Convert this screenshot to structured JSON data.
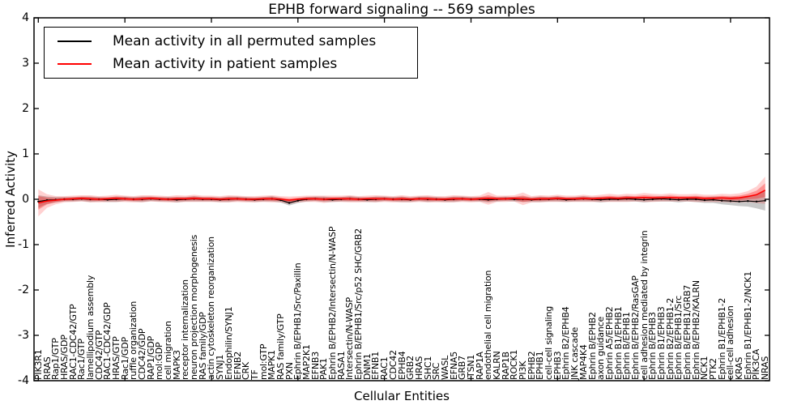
{
  "chart_data": {
    "type": "line",
    "title": "EPHB forward signaling -- 569 samples",
    "xlabel": "Cellular Entities",
    "ylabel": "Inferred Activity",
    "ylim": [
      -4,
      4
    ],
    "yticks": [
      4,
      3,
      2,
      1,
      0,
      -1,
      -2,
      -3,
      -4
    ],
    "grid": false,
    "legend_position": "upper left",
    "categories": [
      "PIK3R1",
      "RRAS",
      "Rap1/GTP",
      "HRAS/GDP",
      "RAC1-CDC42/GTP",
      "Rac1/GTP",
      "lamellipodium assembly",
      "CDC42/GTP",
      "RAC1-CDC42/GDP",
      "HRAS/GTP",
      "Rac1/GDP",
      "ruffle organization",
      "CDC42/GDP",
      "RAP1/GDP",
      "mol:GDP",
      "cell migration",
      "MAPK3",
      "receptor internalization",
      "neuron projection morphogenesis",
      "RAS family/GDP",
      "actin cytoskeleton reorganization",
      "SYNJ1",
      "Endophilin/SYNJ1",
      "EFNB2",
      "CRK",
      "TF",
      "mol:GTP",
      "MAPK1",
      "RAS family/GTP",
      "PXN",
      "Ephrin B/EPHB1/Src/Paxillin",
      "MAP2K1",
      "EFNB3",
      "PAK1",
      "Ephrin B/EPHB2/Intersectin/N-WASP",
      "RASA1",
      "Intersectin/N-WASP",
      "Ephrin B/EPHB1/Src/p52 SHC/GRB2",
      "DNM1",
      "EFNB1",
      "RAC1",
      "CDC42",
      "EPHB4",
      "GRB2",
      "HRAS",
      "SHC1",
      "SRC",
      "WASL",
      "EFNA5",
      "GRB7",
      "ITSN1",
      "RAP1A",
      "endothelial cell migration",
      "KALRN",
      "RAP1B",
      "ROCK1",
      "PI3K",
      "EPHB2",
      "EPHB1",
      "cell-cell signaling",
      "EPHB3",
      "Ephrin B2/EPHB4",
      "JNK cascade",
      "MAP4K4",
      "Ephrin B/EPHB2",
      "axon guidance",
      "Ephrin A5/EPHB2",
      "Ephrin B1/EPHB1",
      "Ephrin B/EPHB1",
      "Ephrin B/EPHB2/RasGAP",
      "cell adhesion mediated by integrin",
      "Ephrin B/EPHB3",
      "Ephrin B1/EPHB3",
      "Ephrin B2/EPHB1-2",
      "Ephrin B/EPHB1/Src",
      "Ephrin B/EPHB1/GRB7",
      "Ephrin B/EPHB2/KALRN",
      "NCK1",
      "PTK2",
      "Ephrin B1/EPHB1-2",
      "cell-cell adhesion",
      "KRAS",
      "Ephrin B1/EPHB1-2/NCK1",
      "PIK3CA",
      "NRAS"
    ],
    "series": [
      {
        "name": "Mean activity in all permuted samples",
        "color": "#000000",
        "values": [
          -0.05,
          -0.02,
          -0.01,
          0.0,
          0.0,
          0.01,
          0.0,
          0.0,
          -0.01,
          0.0,
          0.01,
          0.0,
          0.0,
          0.01,
          0.0,
          0.0,
          -0.01,
          0.0,
          0.01,
          0.0,
          0.0,
          -0.01,
          0.0,
          0.01,
          0.0,
          -0.01,
          0.0,
          0.01,
          -0.02,
          -0.08,
          -0.03,
          0.0,
          0.01,
          0.0,
          -0.01,
          0.0,
          0.01,
          0.0,
          -0.01,
          0.0,
          0.01,
          0.0,
          0.0,
          -0.01,
          0.01,
          0.0,
          0.0,
          -0.01,
          0.0,
          0.01,
          0.0,
          0.0,
          -0.01,
          0.0,
          0.01,
          0.0,
          0.0,
          -0.01,
          0.0,
          0.0,
          0.01,
          -0.01,
          0.0,
          0.01,
          0.0,
          -0.01,
          0.0,
          0.0,
          0.01,
          0.0,
          -0.01,
          0.0,
          0.01,
          0.0,
          -0.01,
          0.0,
          0.0,
          -0.02,
          -0.01,
          -0.03,
          -0.04,
          -0.05,
          -0.04,
          -0.05,
          -0.03
        ],
        "band_halfwidth": [
          0.14,
          0.08,
          0.06,
          0.05,
          0.05,
          0.05,
          0.06,
          0.05,
          0.05,
          0.06,
          0.05,
          0.05,
          0.06,
          0.05,
          0.05,
          0.05,
          0.06,
          0.05,
          0.06,
          0.05,
          0.05,
          0.05,
          0.06,
          0.05,
          0.05,
          0.05,
          0.05,
          0.06,
          0.05,
          0.06,
          0.05,
          0.05,
          0.05,
          0.06,
          0.05,
          0.05,
          0.06,
          0.05,
          0.05,
          0.06,
          0.05,
          0.05,
          0.06,
          0.05,
          0.05,
          0.06,
          0.05,
          0.05,
          0.06,
          0.05,
          0.05,
          0.05,
          0.06,
          0.05,
          0.05,
          0.05,
          0.06,
          0.05,
          0.06,
          0.05,
          0.06,
          0.05,
          0.05,
          0.06,
          0.05,
          0.06,
          0.05,
          0.05,
          0.06,
          0.05,
          0.06,
          0.05,
          0.06,
          0.05,
          0.06,
          0.05,
          0.06,
          0.06,
          0.07,
          0.08,
          0.09,
          0.1,
          0.12,
          0.15,
          0.22
        ]
      },
      {
        "name": "Mean activity in patient samples",
        "color": "#ff0000",
        "values": [
          -0.08,
          -0.04,
          -0.02,
          0.0,
          0.01,
          0.02,
          0.01,
          0.0,
          0.01,
          0.02,
          0.01,
          0.0,
          0.01,
          0.02,
          0.01,
          0.0,
          0.01,
          0.01,
          0.02,
          0.01,
          0.01,
          0.0,
          0.01,
          0.01,
          0.0,
          0.0,
          0.01,
          0.01,
          0.0,
          -0.02,
          0.0,
          0.01,
          0.01,
          0.0,
          0.01,
          0.01,
          0.01,
          0.0,
          0.01,
          0.01,
          0.01,
          0.0,
          0.01,
          0.0,
          0.01,
          0.01,
          0.0,
          0.0,
          0.01,
          0.01,
          0.0,
          0.01,
          0.02,
          0.01,
          0.01,
          0.02,
          0.01,
          0.0,
          0.01,
          0.01,
          0.02,
          0.01,
          0.01,
          0.02,
          0.01,
          0.02,
          0.03,
          0.02,
          0.03,
          0.03,
          0.04,
          0.03,
          0.03,
          0.04,
          0.03,
          0.03,
          0.03,
          0.02,
          0.02,
          0.03,
          0.02,
          0.03,
          0.06,
          0.1,
          0.2
        ],
        "band_halfwidth": [
          0.3,
          0.15,
          0.09,
          0.07,
          0.07,
          0.07,
          0.08,
          0.07,
          0.07,
          0.08,
          0.07,
          0.07,
          0.08,
          0.07,
          0.07,
          0.07,
          0.08,
          0.07,
          0.08,
          0.07,
          0.07,
          0.07,
          0.08,
          0.07,
          0.07,
          0.07,
          0.07,
          0.08,
          0.07,
          0.08,
          0.07,
          0.07,
          0.07,
          0.08,
          0.07,
          0.07,
          0.08,
          0.07,
          0.07,
          0.08,
          0.07,
          0.07,
          0.08,
          0.07,
          0.07,
          0.08,
          0.07,
          0.07,
          0.08,
          0.07,
          0.07,
          0.07,
          0.14,
          0.07,
          0.07,
          0.07,
          0.14,
          0.07,
          0.08,
          0.07,
          0.08,
          0.07,
          0.07,
          0.08,
          0.07,
          0.08,
          0.09,
          0.08,
          0.09,
          0.08,
          0.1,
          0.09,
          0.08,
          0.09,
          0.08,
          0.08,
          0.09,
          0.08,
          0.08,
          0.09,
          0.09,
          0.1,
          0.12,
          0.18,
          0.3
        ]
      }
    ]
  }
}
